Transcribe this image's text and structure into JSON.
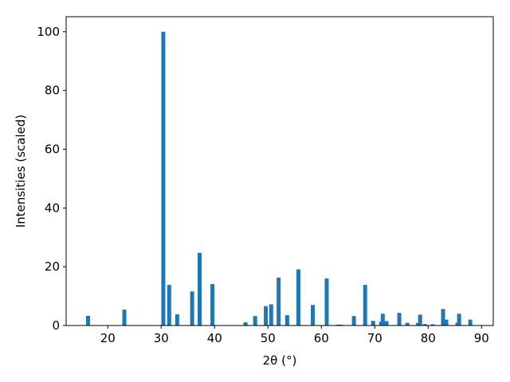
{
  "chart_data": {
    "type": "bar",
    "xlabel": "2θ (°)",
    "ylabel": "Intensities (scaled)",
    "x": [
      16.3,
      23.1,
      30.4,
      31.5,
      33.0,
      35.8,
      37.2,
      39.6,
      45.8,
      47.6,
      49.6,
      50.6,
      52.0,
      53.6,
      55.7,
      58.4,
      61.0,
      63.1,
      63.7,
      66.1,
      68.2,
      69.7,
      71.2,
      71.5,
      72.2,
      74.6,
      76.1,
      78.1,
      78.5,
      79.4,
      80.9,
      82.8,
      83.4,
      85.5,
      85.8,
      87.9
    ],
    "values": [
      3.3,
      5.4,
      100,
      13.8,
      3.8,
      11.6,
      24.7,
      14.1,
      1.1,
      3.2,
      6.6,
      7.2,
      16.3,
      3.5,
      19.1,
      7.0,
      16.0,
      0.3,
      0.3,
      3.2,
      13.8,
      1.6,
      1.3,
      4.0,
      1.5,
      4.3,
      0.9,
      0.9,
      3.7,
      0.5,
      0.4,
      5.6,
      2.0,
      1.0,
      4.0,
      2.0
    ],
    "color": "#1f77b4",
    "xlim": [
      12.2,
      92.2
    ],
    "xticks": [
      20,
      30,
      40,
      50,
      60,
      70,
      80,
      90
    ],
    "ylim": [
      0,
      105.1
    ],
    "yticks": [
      0,
      20,
      40,
      60,
      80,
      100
    ]
  }
}
